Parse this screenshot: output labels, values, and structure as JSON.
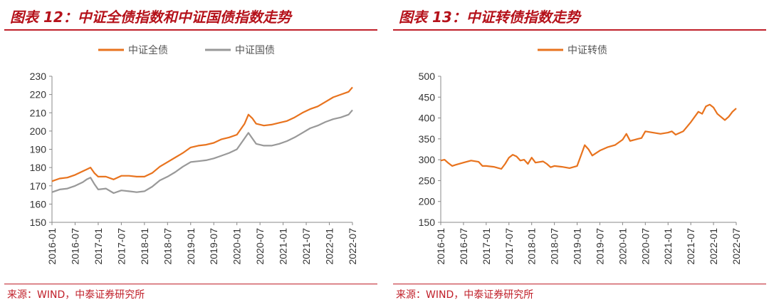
{
  "charts": [
    {
      "title": "图表 12：中证全债指数和中证国债指数走势",
      "source": "来源：WIND，中泰证券研究所"
    },
    {
      "title": "图表 13：中证转债指数走势",
      "source": "来源：WIND，中泰证券研究所"
    }
  ],
  "chart_data": [
    {
      "type": "line",
      "title": "图表 12：中证全债指数和中证国债指数走势",
      "xlabel": "",
      "ylabel": "",
      "ylim": [
        150,
        230
      ],
      "yticks": [
        150,
        160,
        170,
        180,
        190,
        200,
        210,
        220,
        230
      ],
      "xlim": [
        "2016-01",
        "2022-07"
      ],
      "xticks": [
        "2016-01",
        "2016-07",
        "2017-01",
        "2017-07",
        "2018-01",
        "2018-07",
        "2019-01",
        "2019-07",
        "2020-01",
        "2020-07",
        "2021-01",
        "2021-07",
        "2022-01",
        "2022-07"
      ],
      "grid": false,
      "legend": "top-center",
      "series": [
        {
          "name": "中证全债",
          "color": "#e8731e",
          "points": [
            [
              "2016-01",
              172.5
            ],
            [
              "2016-03",
              174
            ],
            [
              "2016-05",
              174.5
            ],
            [
              "2016-07",
              176
            ],
            [
              "2016-09",
              178
            ],
            [
              "2016-10",
              179
            ],
            [
              "2016-11",
              180
            ],
            [
              "2016-12",
              177
            ],
            [
              "2017-01",
              175
            ],
            [
              "2017-03",
              175
            ],
            [
              "2017-05",
              173.5
            ],
            [
              "2017-07",
              175.5
            ],
            [
              "2017-09",
              175.5
            ],
            [
              "2017-11",
              175
            ],
            [
              "2018-01",
              175
            ],
            [
              "2018-03",
              177
            ],
            [
              "2018-05",
              180.5
            ],
            [
              "2018-07",
              183
            ],
            [
              "2018-09",
              185.5
            ],
            [
              "2018-11",
              188
            ],
            [
              "2019-01",
              191
            ],
            [
              "2019-03",
              192
            ],
            [
              "2019-05",
              192.5
            ],
            [
              "2019-07",
              193.5
            ],
            [
              "2019-09",
              195.5
            ],
            [
              "2019-11",
              196.5
            ],
            [
              "2020-01",
              198
            ],
            [
              "2020-03",
              204
            ],
            [
              "2020-04",
              209
            ],
            [
              "2020-05",
              207
            ],
            [
              "2020-06",
              204
            ],
            [
              "2020-08",
              203
            ],
            [
              "2020-10",
              203.5
            ],
            [
              "2020-12",
              204.5
            ],
            [
              "2021-02",
              205.5
            ],
            [
              "2021-04",
              207.5
            ],
            [
              "2021-06",
              210
            ],
            [
              "2021-08",
              212
            ],
            [
              "2021-10",
              213.5
            ],
            [
              "2021-12",
              216
            ],
            [
              "2022-02",
              218.5
            ],
            [
              "2022-04",
              220
            ],
            [
              "2022-06",
              221.5
            ],
            [
              "2022-07",
              224
            ]
          ]
        },
        {
          "name": "中证国债",
          "color": "#999999",
          "points": [
            [
              "2016-01",
              166.5
            ],
            [
              "2016-03",
              168
            ],
            [
              "2016-05",
              168.5
            ],
            [
              "2016-07",
              170
            ],
            [
              "2016-09",
              172
            ],
            [
              "2016-10",
              173.5
            ],
            [
              "2016-11",
              174.5
            ],
            [
              "2016-12",
              171
            ],
            [
              "2017-01",
              168
            ],
            [
              "2017-03",
              168.5
            ],
            [
              "2017-05",
              166
            ],
            [
              "2017-07",
              167.5
            ],
            [
              "2017-09",
              167
            ],
            [
              "2017-11",
              166.5
            ],
            [
              "2018-01",
              167
            ],
            [
              "2018-03",
              169.5
            ],
            [
              "2018-05",
              173
            ],
            [
              "2018-07",
              175
            ],
            [
              "2018-09",
              177.5
            ],
            [
              "2018-11",
              180.5
            ],
            [
              "2019-01",
              183
            ],
            [
              "2019-03",
              183.5
            ],
            [
              "2019-05",
              184
            ],
            [
              "2019-07",
              185
            ],
            [
              "2019-09",
              186.5
            ],
            [
              "2019-11",
              188
            ],
            [
              "2020-01",
              190
            ],
            [
              "2020-03",
              196
            ],
            [
              "2020-04",
              199
            ],
            [
              "2020-05",
              196
            ],
            [
              "2020-06",
              193
            ],
            [
              "2020-08",
              192
            ],
            [
              "2020-10",
              192
            ],
            [
              "2020-12",
              193
            ],
            [
              "2021-02",
              194.5
            ],
            [
              "2021-04",
              196.5
            ],
            [
              "2021-06",
              199
            ],
            [
              "2021-08",
              201.5
            ],
            [
              "2021-10",
              203
            ],
            [
              "2021-12",
              205
            ],
            [
              "2022-02",
              206.5
            ],
            [
              "2022-04",
              207.5
            ],
            [
              "2022-06",
              209
            ],
            [
              "2022-07",
              211.5
            ]
          ]
        }
      ]
    },
    {
      "type": "line",
      "title": "图表 13：中证转债指数走势",
      "xlabel": "",
      "ylabel": "",
      "ylim": [
        150,
        500
      ],
      "yticks": [
        150,
        200,
        250,
        300,
        350,
        400,
        450,
        500
      ],
      "xlim": [
        "2016-01",
        "2022-07"
      ],
      "xticks": [
        "2016-01",
        "2016-07",
        "2017-01",
        "2017-07",
        "2018-01",
        "2018-07",
        "2019-01",
        "2019-07",
        "2020-01",
        "2020-07",
        "2021-01",
        "2021-07",
        "2022-01",
        "2022-07"
      ],
      "grid": false,
      "legend": "top-center",
      "series": [
        {
          "name": "中证转债",
          "color": "#e8731e",
          "points": [
            [
              "2016-01",
              298
            ],
            [
              "2016-02",
              300
            ],
            [
              "2016-03",
              292
            ],
            [
              "2016-04",
              285
            ],
            [
              "2016-05",
              288
            ],
            [
              "2016-07",
              293
            ],
            [
              "2016-09",
              298
            ],
            [
              "2016-11",
              295
            ],
            [
              "2016-12",
              285
            ],
            [
              "2017-01",
              285
            ],
            [
              "2017-03",
              283
            ],
            [
              "2017-05",
              278
            ],
            [
              "2017-06",
              290
            ],
            [
              "2017-07",
              305
            ],
            [
              "2017-08",
              312
            ],
            [
              "2017-09",
              308
            ],
            [
              "2017-10",
              298
            ],
            [
              "2017-11",
              300
            ],
            [
              "2017-12",
              290
            ],
            [
              "2018-01",
              305
            ],
            [
              "2018-02",
              293
            ],
            [
              "2018-04",
              296
            ],
            [
              "2018-05",
              290
            ],
            [
              "2018-06",
              282
            ],
            [
              "2018-07",
              285
            ],
            [
              "2018-09",
              283
            ],
            [
              "2018-11",
              280
            ],
            [
              "2019-01",
              285
            ],
            [
              "2019-02",
              310
            ],
            [
              "2019-03",
              335
            ],
            [
              "2019-04",
              325
            ],
            [
              "2019-05",
              310
            ],
            [
              "2019-07",
              322
            ],
            [
              "2019-09",
              330
            ],
            [
              "2019-11",
              335
            ],
            [
              "2020-01",
              348
            ],
            [
              "2020-02",
              362
            ],
            [
              "2020-03",
              345
            ],
            [
              "2020-05",
              350
            ],
            [
              "2020-06",
              352
            ],
            [
              "2020-07",
              368
            ],
            [
              "2020-09",
              365
            ],
            [
              "2020-11",
              362
            ],
            [
              "2021-01",
              365
            ],
            [
              "2021-02",
              368
            ],
            [
              "2021-03",
              360
            ],
            [
              "2021-05",
              368
            ],
            [
              "2021-07",
              390
            ],
            [
              "2021-09",
              415
            ],
            [
              "2021-10",
              410
            ],
            [
              "2021-11",
              428
            ],
            [
              "2021-12",
              432
            ],
            [
              "2022-01",
              425
            ],
            [
              "2022-02",
              410
            ],
            [
              "2022-04",
              395
            ],
            [
              "2022-05",
              403
            ],
            [
              "2022-06",
              415
            ],
            [
              "2022-07",
              423
            ]
          ]
        }
      ]
    }
  ]
}
